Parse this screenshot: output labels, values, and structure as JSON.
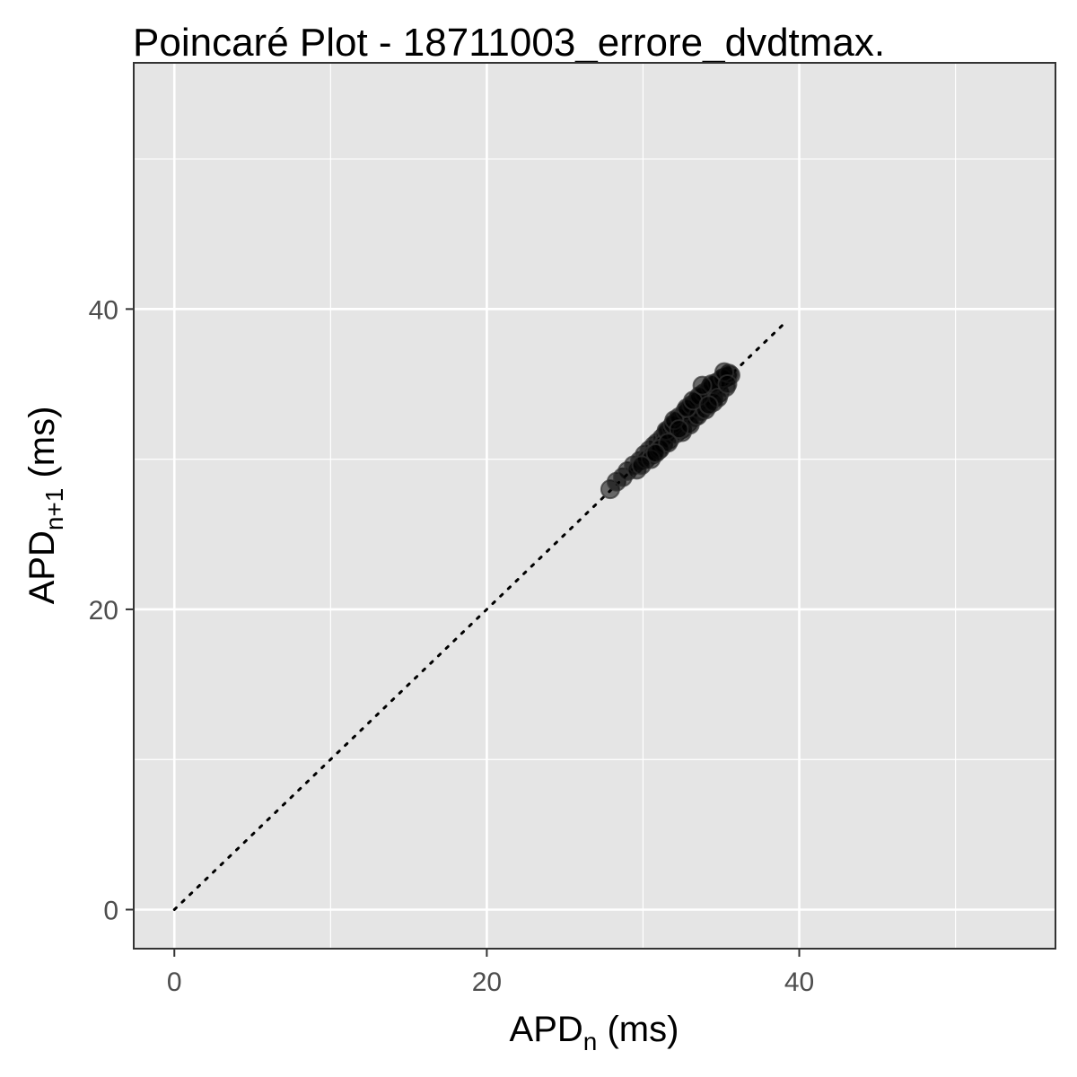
{
  "chart_data": {
    "type": "scatter",
    "title": "Poincaré Plot - 18711003_errore_dvdtmax.",
    "xlabel": {
      "base": "APD",
      "sub": "n",
      "unit": " (ms)"
    },
    "ylabel": {
      "base": "APD",
      "sub": "n+1",
      "unit": " (ms)"
    },
    "xlim": [
      -2.6,
      56.4
    ],
    "ylim": [
      -2.6,
      56.4
    ],
    "xticks": [
      0,
      20,
      40
    ],
    "yticks": [
      0,
      20,
      40
    ],
    "minor_grid": [
      10,
      30,
      50
    ],
    "grid": true,
    "panel_background": "#e5e5e5",
    "grid_color": "#ffffff",
    "point_color": "#000000",
    "point_alpha": 0.55,
    "identity_line": {
      "x": [
        0,
        39
      ],
      "y": [
        0,
        39
      ],
      "style": "dotted",
      "color": "#000000"
    },
    "series": [
      {
        "x": [
          27.9,
          28.3,
          28.7,
          29.0,
          29.4,
          29.8,
          30.1,
          30.4,
          30.7,
          30.9,
          31.2,
          31.4,
          31.6,
          31.8,
          32.0,
          32.2,
          32.4,
          32.6,
          32.8,
          33.0,
          33.2,
          33.4,
          33.6,
          33.8,
          34.0,
          34.2,
          34.4,
          34.6,
          34.8,
          35.0,
          35.2,
          35.4,
          35.6,
          29.6,
          30.2,
          30.6,
          31.0,
          31.3,
          31.7,
          32.1,
          32.5,
          32.9,
          33.3,
          33.7,
          34.1,
          34.5,
          34.9,
          35.3,
          31.5,
          31.9,
          32.3,
          32.7,
          33.1,
          33.5,
          33.9,
          34.3,
          34.7,
          35.1,
          35.5,
          32.5,
          33.0,
          33.5,
          34.0,
          34.5,
          32.0,
          32.8,
          33.6,
          34.4,
          35.2,
          31.1,
          30.5,
          29.9,
          33.2,
          34.8,
          35.4,
          32.3,
          33.8,
          34.2,
          31.6,
          30.8
        ],
        "y": [
          28.0,
          28.5,
          28.8,
          29.2,
          29.6,
          29.9,
          30.3,
          30.6,
          30.9,
          31.1,
          31.4,
          31.6,
          31.9,
          32.1,
          32.3,
          32.5,
          32.7,
          32.9,
          33.1,
          33.3,
          33.5,
          33.7,
          33.9,
          34.1,
          34.3,
          34.5,
          34.7,
          34.9,
          35.1,
          35.3,
          35.4,
          35.5,
          35.6,
          29.3,
          30.0,
          30.3,
          30.6,
          31.0,
          31.3,
          31.7,
          32.0,
          32.4,
          32.8,
          33.2,
          33.6,
          34.0,
          34.4,
          34.8,
          31.9,
          32.3,
          32.8,
          33.2,
          33.6,
          34.0,
          34.4,
          34.8,
          35.1,
          35.4,
          35.7,
          31.8,
          32.3,
          32.9,
          33.3,
          33.8,
          32.6,
          33.4,
          34.2,
          35.0,
          35.8,
          30.7,
          30.0,
          29.6,
          33.9,
          34.1,
          35.0,
          32.0,
          34.9,
          33.6,
          31.1,
          30.4
        ]
      }
    ]
  }
}
